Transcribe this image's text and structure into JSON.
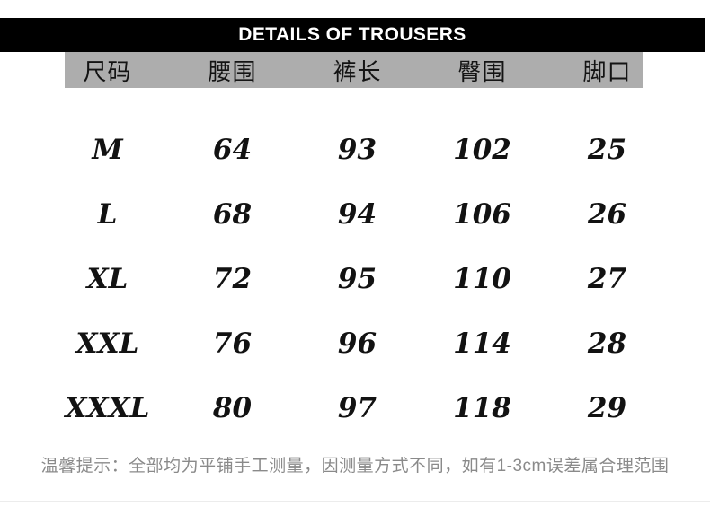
{
  "title": "DETAILS OF TROUSERS",
  "note": "温馨提示：全部均为平铺手工测量，因测量方式不同，如有1-3cm误差属合理范围",
  "colors": {
    "title_bg": "#000000",
    "title_text": "#ffffff",
    "header_bg": "#adadad",
    "header_text": "#141414",
    "cell_text": "#121212",
    "note_text": "#8a8a8a"
  },
  "chart_data": {
    "type": "table",
    "title": "DETAILS OF TROUSERS",
    "columns": [
      "尺码",
      "腰围",
      "裤长",
      "臀围",
      "脚口"
    ],
    "column_meanings": [
      "size",
      "waist",
      "pants-length",
      "hip",
      "leg-opening"
    ],
    "rows": [
      [
        "M",
        "64",
        "93",
        "102",
        "25"
      ],
      [
        "L",
        "68",
        "94",
        "106",
        "26"
      ],
      [
        "XL",
        "72",
        "95",
        "110",
        "27"
      ],
      [
        "XXL",
        "76",
        "96",
        "114",
        "28"
      ],
      [
        "XXXL",
        "80",
        "97",
        "118",
        "29"
      ]
    ],
    "footnote": "温馨提示：全部均为平铺手工测量，因测量方式不同，如有1-3cm误差属合理范围"
  }
}
